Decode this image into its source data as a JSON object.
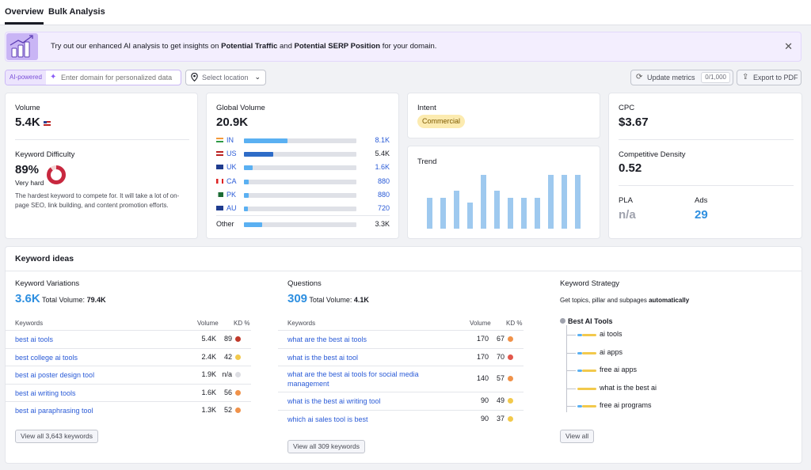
{
  "tabs": [
    "Overview",
    "Bulk Analysis"
  ],
  "banner": {
    "text_pre": "Try out our enhanced AI analysis to get insights on ",
    "bold1": "Potential Traffic",
    "text_mid": " and ",
    "bold2": "Potential SERP Position",
    "text_post": " for your domain."
  },
  "toolbar": {
    "ai_tag": "AI-powered",
    "domain_placeholder": "Enter domain for personalized data",
    "location_placeholder": "Select location",
    "update_label": "Update metrics",
    "update_count": "0/1,000",
    "export_label": "Export to PDF"
  },
  "volume": {
    "label": "Volume",
    "value": "5.4K"
  },
  "difficulty": {
    "label": "Keyword Difficulty",
    "value": "89%",
    "level": "Very hard",
    "percent": 89,
    "description": "The hardest keyword to compete for. It will take a lot of on-page SEO, link building, and content promotion efforts."
  },
  "global_volume": {
    "label": "Global Volume",
    "value": "20.9K",
    "rows": [
      {
        "code": "IN",
        "value": "8.1K",
        "share": 0.39,
        "color": "#5ab0f2"
      },
      {
        "code": "US",
        "value": "5.4K",
        "share": 0.26,
        "color": "#2e6cc7"
      },
      {
        "code": "UK",
        "value": "1.6K",
        "share": 0.08,
        "color": "#5ab0f2"
      },
      {
        "code": "CA",
        "value": "880",
        "share": 0.042,
        "color": "#5ab0f2"
      },
      {
        "code": "PK",
        "value": "880",
        "share": 0.042,
        "color": "#5ab0f2"
      },
      {
        "code": "AU",
        "value": "720",
        "share": 0.035,
        "color": "#5ab0f2"
      }
    ],
    "other": {
      "label": "Other",
      "value": "3.3K",
      "share": 0.16
    }
  },
  "intent": {
    "label": "Intent",
    "badge": "Commercial"
  },
  "trend": {
    "label": "Trend",
    "values": [
      0.58,
      0.58,
      0.71,
      0.48,
      1.0,
      0.71,
      0.58,
      0.58,
      0.58,
      1.0,
      1.0,
      1.0
    ]
  },
  "cpc": {
    "label": "CPC",
    "value": "$3.67"
  },
  "density": {
    "label": "Competitive Density",
    "value": "0.52"
  },
  "pla": {
    "label": "PLA",
    "value": "n/a"
  },
  "ads": {
    "label": "Ads",
    "value": "29"
  },
  "ideas": {
    "title": "Keyword ideas",
    "variations": {
      "label": "Keyword Variations",
      "count": "3.6K",
      "total_label": "Total Volume:",
      "total": "79.4K",
      "headers": {
        "kw": "Keywords",
        "vol": "Volume",
        "kd": "KD %"
      },
      "rows": [
        {
          "kw": "best ai tools",
          "vol": "5.4K",
          "kd": "89",
          "color": "#c0392b"
        },
        {
          "kw": "best college ai tools",
          "vol": "2.4K",
          "kd": "42",
          "color": "#f2c94c"
        },
        {
          "kw": "best ai poster design tool",
          "vol": "1.9K",
          "kd": "n/a",
          "color": "#dcdde2"
        },
        {
          "kw": "best ai writing tools",
          "vol": "1.6K",
          "kd": "56",
          "color": "#f0924a"
        },
        {
          "kw": "best ai paraphrasing tool",
          "vol": "1.3K",
          "kd": "52",
          "color": "#f0924a"
        }
      ],
      "view_all": "View all 3,643 keywords"
    },
    "questions": {
      "label": "Questions",
      "count": "309",
      "total_label": "Total Volume:",
      "total": "4.1K",
      "headers": {
        "kw": "Keywords",
        "vol": "Volume",
        "kd": "KD %"
      },
      "rows": [
        {
          "kw": "what are the best ai tools",
          "vol": "170",
          "kd": "67",
          "color": "#f0924a"
        },
        {
          "kw": "what is the best ai tool",
          "vol": "170",
          "kd": "70",
          "color": "#e2574c"
        },
        {
          "kw": "what are the best ai tools for social media management",
          "vol": "140",
          "kd": "57",
          "color": "#f0924a"
        },
        {
          "kw": "what is the best ai writing tool",
          "vol": "90",
          "kd": "49",
          "color": "#f2c94c"
        },
        {
          "kw": "which ai sales tool is best",
          "vol": "90",
          "kd": "37",
          "color": "#f2c94c"
        }
      ],
      "view_all": "View all 309 keywords"
    },
    "strategy": {
      "label": "Keyword Strategy",
      "desc_pre": "Get topics, pillar and subpages ",
      "desc_bold": "automatically",
      "root": "Best AI Tools",
      "children": [
        "ai tools",
        "ai apps",
        "free ai apps",
        "what is the best ai",
        "free ai programs"
      ],
      "view_all": "View all"
    }
  }
}
